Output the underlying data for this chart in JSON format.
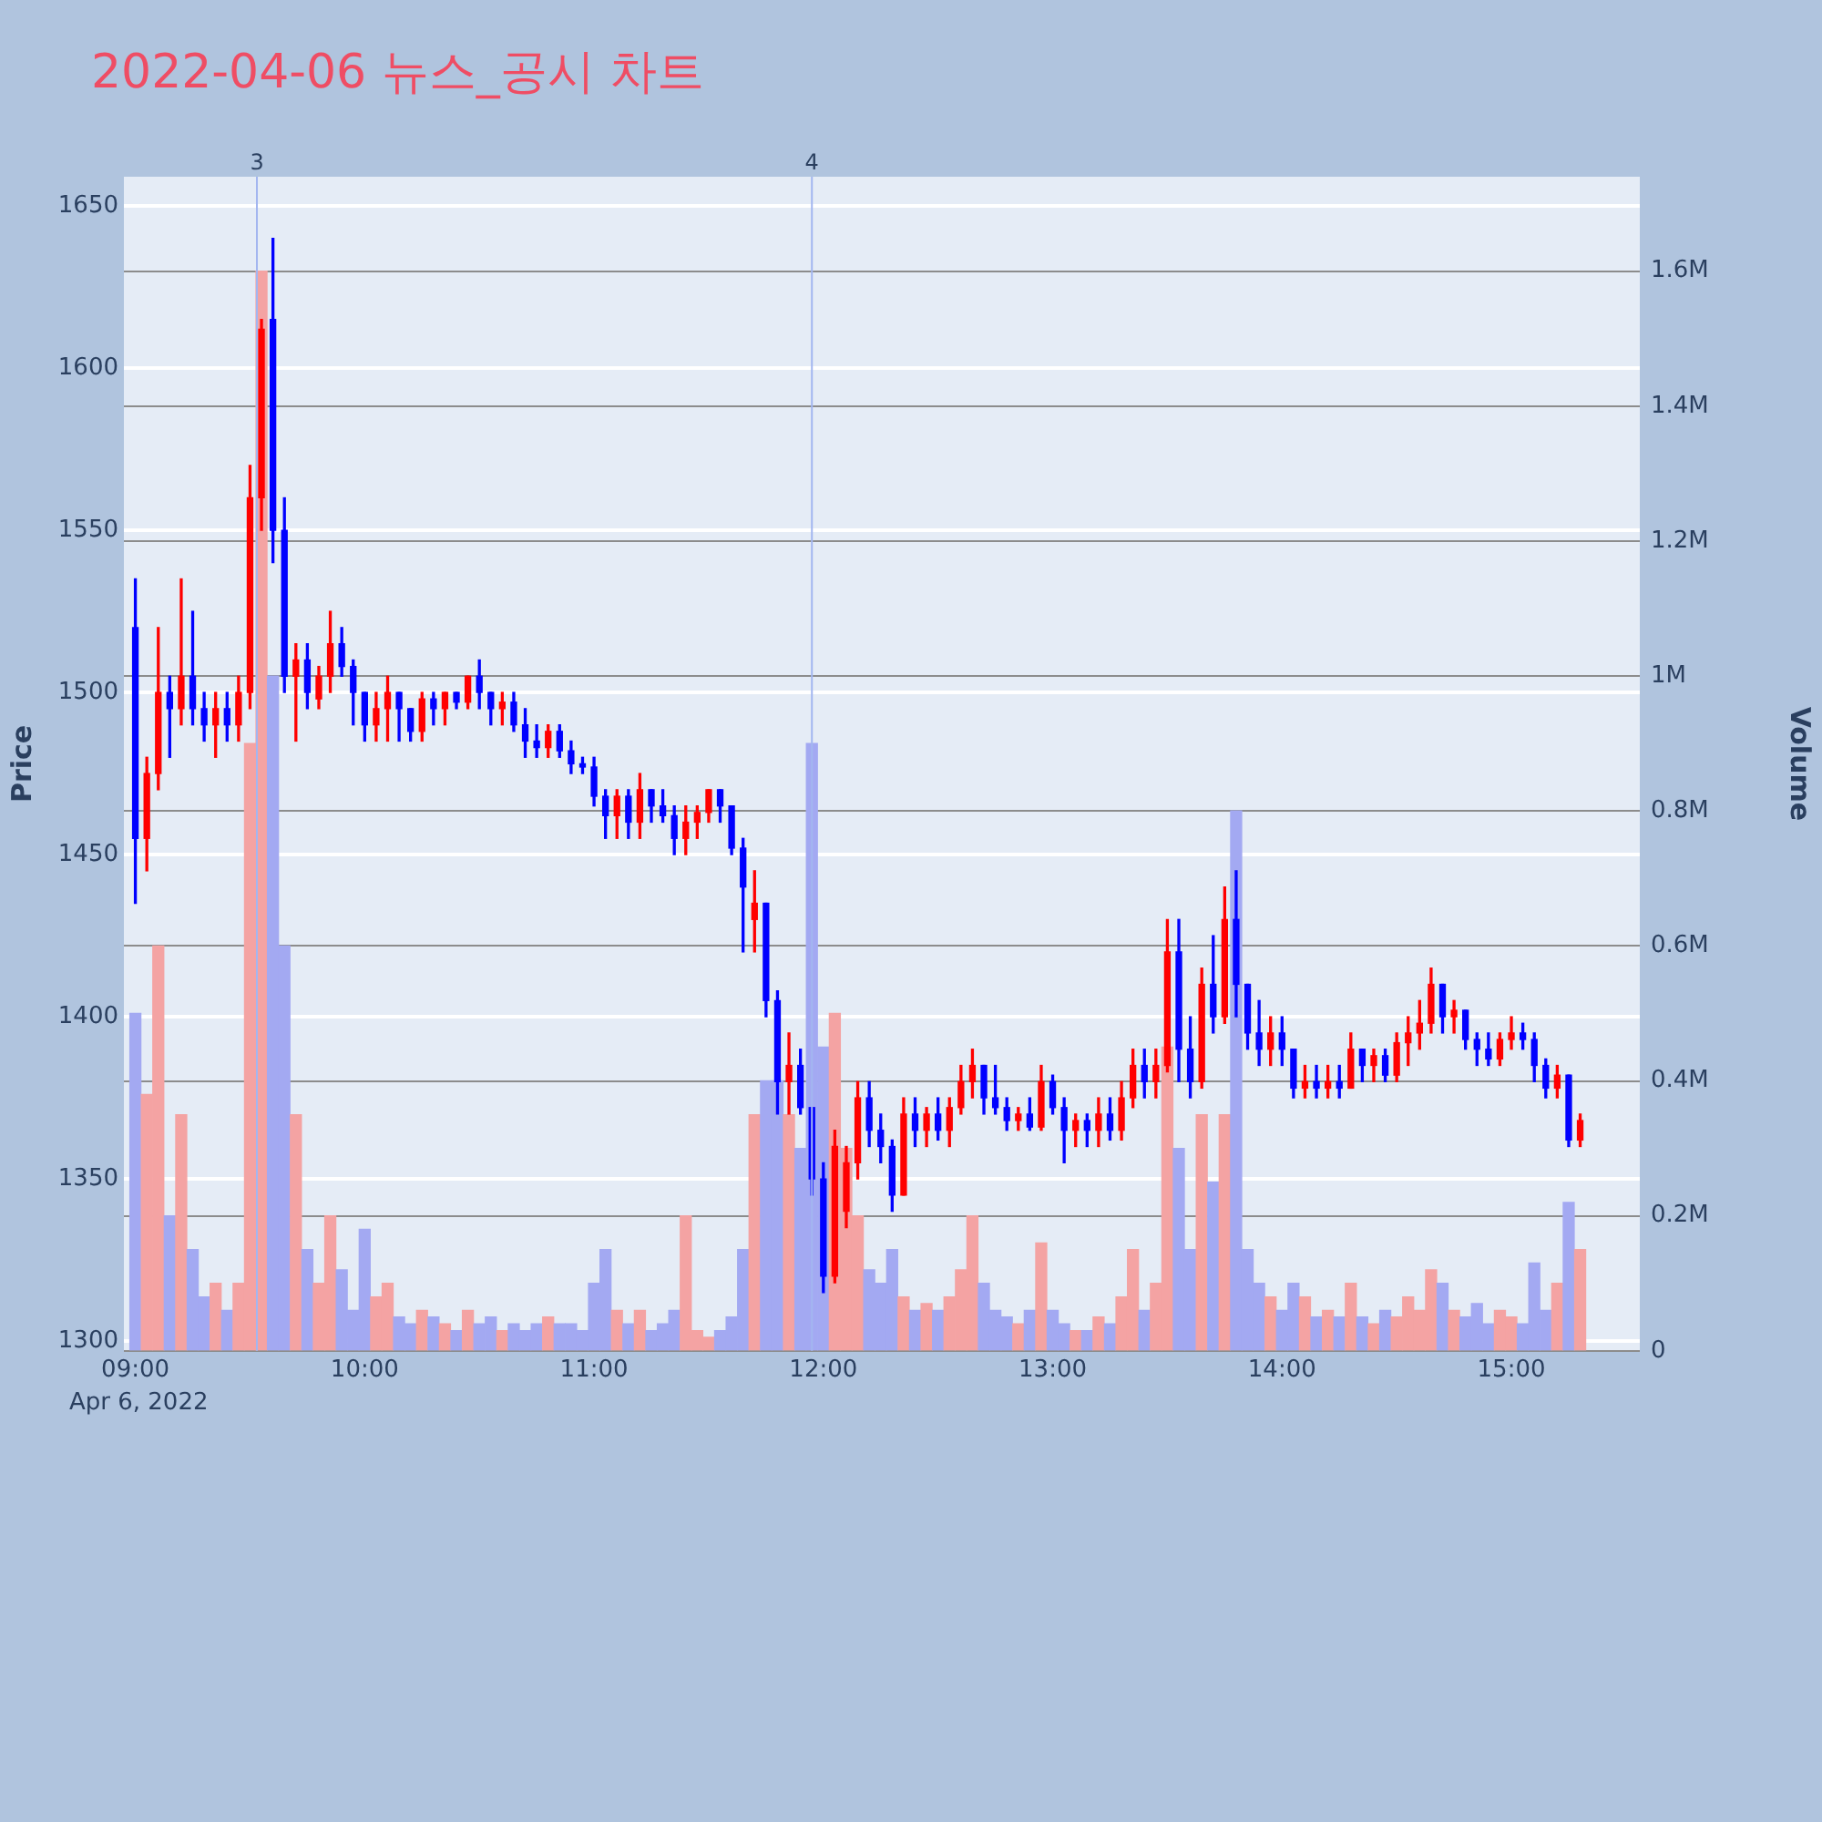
{
  "chart_data": {
    "type": "candlestick",
    "title": "2022-04-06 뉴스_공시 차트",
    "ylabel": "Price",
    "y2label": "Volume",
    "grid": "y",
    "legend": false,
    "x": [
      9,
      9.05,
      9.1,
      9.15,
      9.2,
      9.25,
      9.3,
      9.35,
      9.4,
      9.45,
      9.5,
      9.55,
      9.6,
      9.65,
      9.7,
      9.75,
      9.8,
      9.85,
      9.9,
      9.95,
      10,
      10.05,
      10.1,
      10.15,
      10.2,
      10.25,
      10.3,
      10.35,
      10.4,
      10.45,
      10.5,
      10.55,
      10.6,
      10.65,
      10.7,
      10.75,
      10.8,
      10.85,
      10.9,
      10.95,
      11,
      11.05,
      11.1,
      11.15,
      11.2,
      11.25,
      11.3,
      11.35,
      11.4,
      11.45,
      11.5,
      11.55,
      11.6,
      11.65,
      11.7,
      11.75,
      11.8,
      11.85,
      11.9,
      11.95,
      12,
      12.05,
      12.1,
      12.15,
      12.2,
      12.25,
      12.3,
      12.35,
      12.4,
      12.45,
      12.5,
      12.55,
      12.6,
      12.65,
      12.7,
      12.75,
      12.8,
      12.85,
      12.9,
      12.95,
      13,
      13.05,
      13.1,
      13.15,
      13.2,
      13.25,
      13.3,
      13.35,
      13.4,
      13.45,
      13.5,
      13.55,
      13.6,
      13.65,
      13.7,
      13.75,
      13.8,
      13.85,
      13.9,
      13.95,
      14,
      14.05,
      14.1,
      14.15,
      14.2,
      14.25,
      14.3,
      14.35,
      14.4,
      14.45,
      14.5,
      14.55,
      14.6,
      14.65,
      14.7,
      14.75,
      14.8,
      14.85,
      14.9,
      14.95,
      15,
      15.05,
      15.1,
      15.15,
      15.2,
      15.25,
      15.3
    ],
    "xlim": [
      8.95,
      15.56
    ],
    "xticks": [
      {
        "value": 9,
        "label": "09:00"
      },
      {
        "value": 10,
        "label": "10:00"
      },
      {
        "value": 11,
        "label": "11:00"
      },
      {
        "value": 12,
        "label": "12:00"
      },
      {
        "value": 13,
        "label": "13:00"
      },
      {
        "value": 14,
        "label": "14:00"
      },
      {
        "value": 15,
        "label": "15:00"
      }
    ],
    "ylim": [
      1297,
      1659
    ],
    "yticks": [
      1300,
      1350,
      1400,
      1450,
      1500,
      1550,
      1600,
      1650
    ],
    "y2lim": [
      0,
      1740000
    ],
    "y2ticks": [
      0,
      {
        "value": 200000,
        "label": "0.2M"
      },
      {
        "value": 400000,
        "label": "0.4M"
      },
      {
        "value": 600000,
        "label": "0.6M"
      },
      {
        "value": 800000,
        "label": "0.8M"
      },
      {
        "value": 1000000,
        "label": "1M"
      },
      {
        "value": 1200000,
        "label": "1.2M"
      },
      {
        "value": 1400000,
        "label": "1.4M"
      },
      {
        "value": 1600000,
        "label": "1.6M"
      }
    ],
    "series": [
      {
        "ohlc": [
          [
            1520,
            1535,
            1435,
            1455
          ],
          [
            1455,
            1480,
            1445,
            1475
          ],
          [
            1475,
            1520,
            1470,
            1500
          ],
          [
            1500,
            1505,
            1480,
            1495
          ],
          [
            1495,
            1535,
            1490,
            1505
          ],
          [
            1505,
            1525,
            1490,
            1495
          ],
          [
            1495,
            1500,
            1485,
            1490
          ],
          [
            1490,
            1500,
            1480,
            1495
          ],
          [
            1495,
            1500,
            1485,
            1490
          ],
          [
            1490,
            1505,
            1485,
            1500
          ],
          [
            1500,
            1570,
            1495,
            1560
          ],
          [
            1560,
            1615,
            1550,
            1612
          ],
          [
            1615,
            1640,
            1540,
            1550
          ],
          [
            1550,
            1560,
            1500,
            1505
          ],
          [
            1505,
            1515,
            1485,
            1510
          ],
          [
            1510,
            1515,
            1495,
            1500
          ],
          [
            1498,
            1508,
            1495,
            1505
          ],
          [
            1505,
            1525,
            1500,
            1515
          ],
          [
            1515,
            1520,
            1505,
            1508
          ],
          [
            1508,
            1510,
            1490,
            1500
          ],
          [
            1500,
            1500,
            1485,
            1490
          ],
          [
            1490,
            1500,
            1485,
            1495
          ],
          [
            1495,
            1505,
            1485,
            1500
          ],
          [
            1500,
            1500,
            1485,
            1495
          ],
          [
            1495,
            1495,
            1485,
            1488
          ],
          [
            1488,
            1500,
            1485,
            1498
          ],
          [
            1498,
            1500,
            1490,
            1495
          ],
          [
            1495,
            1500,
            1490,
            1500
          ],
          [
            1500,
            1500,
            1495,
            1497
          ],
          [
            1497,
            1505,
            1495,
            1505
          ],
          [
            1505,
            1510,
            1495,
            1500
          ],
          [
            1500,
            1500,
            1490,
            1495
          ],
          [
            1495,
            1500,
            1490,
            1497
          ],
          [
            1497,
            1500,
            1488,
            1490
          ],
          [
            1490,
            1495,
            1480,
            1485
          ],
          [
            1485,
            1490,
            1480,
            1483
          ],
          [
            1483,
            1490,
            1480,
            1488
          ],
          [
            1488,
            1490,
            1480,
            1482
          ],
          [
            1482,
            1485,
            1475,
            1478
          ],
          [
            1478,
            1480,
            1475,
            1477
          ],
          [
            1477,
            1480,
            1465,
            1468
          ],
          [
            1468,
            1470,
            1455,
            1462
          ],
          [
            1462,
            1470,
            1455,
            1468
          ],
          [
            1468,
            1470,
            1455,
            1460
          ],
          [
            1460,
            1475,
            1455,
            1470
          ],
          [
            1470,
            1470,
            1460,
            1465
          ],
          [
            1465,
            1470,
            1460,
            1462
          ],
          [
            1462,
            1465,
            1450,
            1455
          ],
          [
            1455,
            1465,
            1450,
            1460
          ],
          [
            1460,
            1465,
            1455,
            1463
          ],
          [
            1463,
            1470,
            1460,
            1470
          ],
          [
            1470,
            1470,
            1460,
            1465
          ],
          [
            1465,
            1465,
            1450,
            1452
          ],
          [
            1452,
            1455,
            1420,
            1440
          ],
          [
            1430,
            1445,
            1420,
            1435
          ],
          [
            1435,
            1435,
            1400,
            1405
          ],
          [
            1405,
            1408,
            1370,
            1380
          ],
          [
            1380,
            1395,
            1370,
            1385
          ],
          [
            1385,
            1390,
            1370,
            1372
          ],
          [
            1372,
            1372,
            1345,
            1350
          ],
          [
            1350,
            1355,
            1315,
            1320
          ],
          [
            1320,
            1365,
            1318,
            1360
          ],
          [
            1340,
            1360,
            1335,
            1355
          ],
          [
            1355,
            1380,
            1350,
            1375
          ],
          [
            1375,
            1380,
            1360,
            1365
          ],
          [
            1365,
            1370,
            1355,
            1360
          ],
          [
            1360,
            1362,
            1340,
            1345
          ],
          [
            1345,
            1375,
            1345,
            1370
          ],
          [
            1370,
            1375,
            1360,
            1365
          ],
          [
            1365,
            1372,
            1360,
            1370
          ],
          [
            1370,
            1375,
            1362,
            1365
          ],
          [
            1365,
            1375,
            1360,
            1372
          ],
          [
            1372,
            1385,
            1370,
            1380
          ],
          [
            1380,
            1390,
            1375,
            1385
          ],
          [
            1385,
            1385,
            1370,
            1375
          ],
          [
            1375,
            1385,
            1370,
            1372
          ],
          [
            1372,
            1375,
            1365,
            1368
          ],
          [
            1368,
            1372,
            1365,
            1370
          ],
          [
            1370,
            1375,
            1365,
            1366
          ],
          [
            1366,
            1385,
            1365,
            1380
          ],
          [
            1380,
            1382,
            1370,
            1372
          ],
          [
            1372,
            1375,
            1355,
            1365
          ],
          [
            1365,
            1370,
            1360,
            1368
          ],
          [
            1368,
            1370,
            1360,
            1365
          ],
          [
            1365,
            1375,
            1360,
            1370
          ],
          [
            1370,
            1375,
            1362,
            1365
          ],
          [
            1365,
            1380,
            1362,
            1375
          ],
          [
            1375,
            1390,
            1372,
            1385
          ],
          [
            1385,
            1390,
            1375,
            1380
          ],
          [
            1380,
            1390,
            1375,
            1385
          ],
          [
            1385,
            1430,
            1383,
            1420
          ],
          [
            1420,
            1430,
            1380,
            1390
          ],
          [
            1390,
            1400,
            1375,
            1380
          ],
          [
            1380,
            1415,
            1378,
            1410
          ],
          [
            1410,
            1425,
            1395,
            1400
          ],
          [
            1400,
            1440,
            1398,
            1430
          ],
          [
            1430,
            1445,
            1400,
            1410
          ],
          [
            1410,
            1410,
            1390,
            1395
          ],
          [
            1395,
            1405,
            1385,
            1390
          ],
          [
            1390,
            1400,
            1385,
            1395
          ],
          [
            1395,
            1400,
            1385,
            1390
          ],
          [
            1390,
            1390,
            1375,
            1378
          ],
          [
            1378,
            1385,
            1375,
            1380
          ],
          [
            1380,
            1385,
            1375,
            1378
          ],
          [
            1378,
            1385,
            1375,
            1380
          ],
          [
            1380,
            1385,
            1375,
            1378
          ],
          [
            1378,
            1395,
            1378,
            1390
          ],
          [
            1390,
            1390,
            1380,
            1385
          ],
          [
            1385,
            1390,
            1380,
            1388
          ],
          [
            1388,
            1390,
            1380,
            1382
          ],
          [
            1382,
            1395,
            1380,
            1392
          ],
          [
            1392,
            1400,
            1385,
            1395
          ],
          [
            1395,
            1405,
            1390,
            1398
          ],
          [
            1398,
            1415,
            1395,
            1410
          ],
          [
            1410,
            1410,
            1395,
            1400
          ],
          [
            1400,
            1405,
            1395,
            1402
          ],
          [
            1402,
            1402,
            1390,
            1393
          ],
          [
            1393,
            1395,
            1385,
            1390
          ],
          [
            1390,
            1395,
            1385,
            1387
          ],
          [
            1387,
            1395,
            1385,
            1393
          ],
          [
            1393,
            1400,
            1390,
            1395
          ],
          [
            1395,
            1398,
            1390,
            1393
          ],
          [
            1393,
            1395,
            1380,
            1385
          ],
          [
            1385,
            1387,
            1375,
            1378
          ],
          [
            1378,
            1385,
            1375,
            1382
          ],
          [
            1382,
            1382,
            1360,
            1362
          ],
          [
            1362,
            1370,
            1360,
            1368
          ]
        ],
        "colors": [
          "#0000ff",
          "#ff0000",
          "#ff0000",
          "#0000ff",
          "#ff0000",
          "#0000ff",
          "#0000ff",
          "#ff0000",
          "#0000ff",
          "#ff0000",
          "#ff0000",
          "#ff0000",
          "#0000ff",
          "#0000ff",
          "#ff0000",
          "#0000ff",
          "#ff0000",
          "#ff0000",
          "#0000ff",
          "#0000ff",
          "#0000ff",
          "#ff0000",
          "#ff0000",
          "#0000ff",
          "#0000ff",
          "#ff0000",
          "#0000ff",
          "#ff0000",
          "#0000ff",
          "#ff0000",
          "#0000ff",
          "#0000ff",
          "#ff0000",
          "#0000ff",
          "#0000ff",
          "#0000ff",
          "#ff0000",
          "#0000ff",
          "#0000ff",
          "#0000ff",
          "#0000ff",
          "#0000ff",
          "#ff0000",
          "#0000ff",
          "#ff0000",
          "#0000ff",
          "#0000ff",
          "#0000ff",
          "#ff0000",
          "#ff0000",
          "#ff0000",
          "#0000ff",
          "#0000ff",
          "#0000ff",
          "#ff0000",
          "#0000ff",
          "#0000ff",
          "#ff0000",
          "#0000ff",
          "#0000ff",
          "#0000ff",
          "#ff0000",
          "#ff0000",
          "#ff0000",
          "#0000ff",
          "#0000ff",
          "#0000ff",
          "#ff0000",
          "#0000ff",
          "#ff0000",
          "#0000ff",
          "#ff0000",
          "#ff0000",
          "#ff0000",
          "#0000ff",
          "#0000ff",
          "#0000ff",
          "#ff0000",
          "#0000ff",
          "#ff0000",
          "#0000ff",
          "#0000ff",
          "#ff0000",
          "#0000ff",
          "#ff0000",
          "#0000ff",
          "#ff0000",
          "#ff0000",
          "#0000ff",
          "#ff0000",
          "#ff0000",
          "#0000ff",
          "#0000ff",
          "#ff0000",
          "#0000ff",
          "#ff0000",
          "#0000ff",
          "#0000ff",
          "#0000ff",
          "#ff0000",
          "#0000ff",
          "#0000ff",
          "#ff0000",
          "#0000ff",
          "#ff0000",
          "#0000ff",
          "#ff0000",
          "#0000ff",
          "#ff0000",
          "#0000ff",
          "#ff0000",
          "#ff0000",
          "#ff0000",
          "#ff0000",
          "#0000ff",
          "#ff0000",
          "#0000ff",
          "#0000ff",
          "#0000ff",
          "#ff0000",
          "#ff0000",
          "#0000ff",
          "#0000ff",
          "#0000ff",
          "#ff0000",
          "#0000ff",
          "#ff0000"
        ]
      },
      {
        "type": "bar",
        "axis": "y2",
        "values": [
          500000,
          380000,
          600000,
          200000,
          350000,
          150000,
          80000,
          100000,
          60000,
          100000,
          900000,
          1600000,
          1000000,
          600000,
          350000,
          150000,
          100000,
          200000,
          120000,
          60000,
          180000,
          80000,
          100000,
          50000,
          40000,
          60000,
          50000,
          40000,
          30000,
          60000,
          40000,
          50000,
          30000,
          40000,
          30000,
          40000,
          50000,
          40000,
          40000,
          30000,
          100000,
          150000,
          60000,
          40000,
          60000,
          30000,
          40000,
          60000,
          200000,
          30000,
          20000,
          30000,
          50000,
          150000,
          350000,
          400000,
          400000,
          350000,
          300000,
          900000,
          450000,
          500000,
          300000,
          200000,
          120000,
          100000,
          150000,
          80000,
          60000,
          70000,
          60000,
          80000,
          120000,
          200000,
          100000,
          60000,
          50000,
          40000,
          60000,
          160000,
          60000,
          40000,
          30000,
          30000,
          50000,
          40000,
          80000,
          150000,
          60000,
          100000,
          450000,
          300000,
          150000,
          350000,
          250000,
          350000,
          800000,
          150000,
          100000,
          80000,
          60000,
          100000,
          80000,
          50000,
          60000,
          50000,
          100000,
          50000,
          40000,
          60000,
          50000,
          80000,
          60000,
          120000,
          100000,
          60000,
          50000,
          70000,
          40000,
          60000,
          50000,
          40000,
          130000,
          60000,
          100000,
          220000,
          150000
        ],
        "colors": [
          "#a3a9f2",
          "#f4a3a3",
          "#f4a3a3",
          "#a3a9f2",
          "#f4a3a3",
          "#a3a9f2",
          "#a3a9f2",
          "#f4a3a3",
          "#a3a9f2",
          "#f4a3a3",
          "#f4a3a3",
          "#f4a3a3",
          "#a3a9f2",
          "#a3a9f2",
          "#f4a3a3",
          "#a3a9f2",
          "#f4a3a3",
          "#f4a3a3",
          "#a3a9f2",
          "#a3a9f2",
          "#a3a9f2",
          "#f4a3a3",
          "#f4a3a3",
          "#a3a9f2",
          "#a3a9f2",
          "#f4a3a3",
          "#a3a9f2",
          "#f4a3a3",
          "#a3a9f2",
          "#f4a3a3",
          "#a3a9f2",
          "#a3a9f2",
          "#f4a3a3",
          "#a3a9f2",
          "#a3a9f2",
          "#a3a9f2",
          "#f4a3a3",
          "#a3a9f2",
          "#a3a9f2",
          "#a3a9f2",
          "#a3a9f2",
          "#a3a9f2",
          "#f4a3a3",
          "#a3a9f2",
          "#f4a3a3",
          "#a3a9f2",
          "#a3a9f2",
          "#a3a9f2",
          "#f4a3a3",
          "#f4a3a3",
          "#f4a3a3",
          "#a3a9f2",
          "#a3a9f2",
          "#a3a9f2",
          "#f4a3a3",
          "#a3a9f2",
          "#a3a9f2",
          "#f4a3a3",
          "#a3a9f2",
          "#a3a9f2",
          "#a3a9f2",
          "#f4a3a3",
          "#f4a3a3",
          "#f4a3a3",
          "#a3a9f2",
          "#a3a9f2",
          "#a3a9f2",
          "#f4a3a3",
          "#a3a9f2",
          "#f4a3a3",
          "#a3a9f2",
          "#f4a3a3",
          "#f4a3a3",
          "#f4a3a3",
          "#a3a9f2",
          "#a3a9f2",
          "#a3a9f2",
          "#f4a3a3",
          "#a3a9f2",
          "#f4a3a3",
          "#a3a9f2",
          "#a3a9f2",
          "#f4a3a3",
          "#a3a9f2",
          "#f4a3a3",
          "#a3a9f2",
          "#f4a3a3",
          "#f4a3a3",
          "#a3a9f2",
          "#f4a3a3",
          "#f4a3a3",
          "#a3a9f2",
          "#a3a9f2",
          "#f4a3a3",
          "#a3a9f2",
          "#f4a3a3",
          "#a3a9f2",
          "#a3a9f2",
          "#a3a9f2",
          "#f4a3a3",
          "#a3a9f2",
          "#a3a9f2",
          "#f4a3a3",
          "#a3a9f2",
          "#f4a3a3",
          "#a3a9f2",
          "#f4a3a3",
          "#a3a9f2",
          "#f4a3a3",
          "#a3a9f2",
          "#f4a3a3",
          "#f4a3a3",
          "#f4a3a3",
          "#f4a3a3",
          "#a3a9f2",
          "#f4a3a3",
          "#a3a9f2",
          "#a3a9f2",
          "#a3a9f2",
          "#f4a3a3",
          "#f4a3a3",
          "#a3a9f2",
          "#a3a9f2",
          "#a3a9f2",
          "#f4a3a3",
          "#a3a9f2",
          "#f4a3a3"
        ]
      }
    ],
    "ref_lines": [
      {
        "axis": "x",
        "value": 9.53,
        "color": "#a3b6f0"
      },
      {
        "axis": "x",
        "value": 11.95,
        "color": "#a3b6f0"
      }
    ],
    "annotations": [
      "Apr 6, 2022",
      "3",
      "4"
    ]
  }
}
